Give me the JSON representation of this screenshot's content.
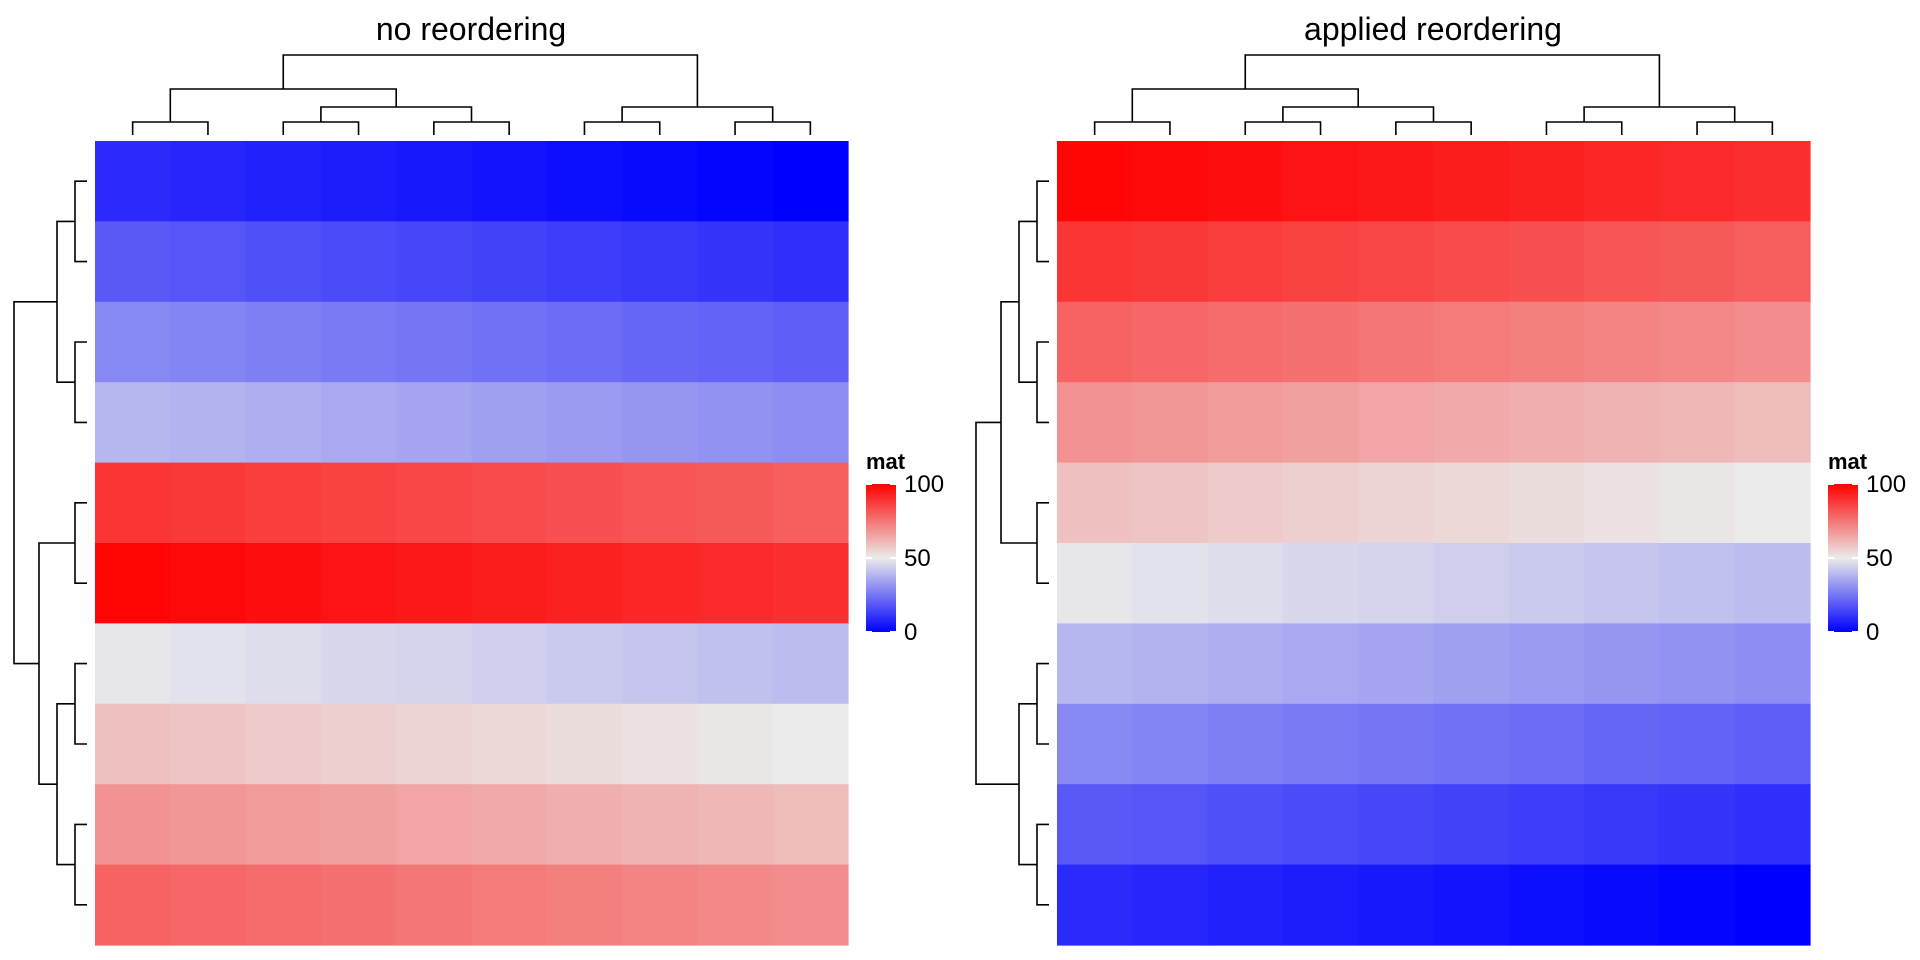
{
  "chart_data": [
    {
      "type": "heatmap",
      "title": "no reordering",
      "legend": {
        "title": "mat",
        "ticks": [
          0,
          50,
          100
        ],
        "range": [
          0,
          100
        ]
      },
      "values": [
        [
          9,
          8,
          7,
          6,
          5,
          4,
          3,
          2,
          1,
          0
        ],
        [
          19,
          18,
          17,
          16,
          15,
          14,
          13,
          12,
          11,
          10
        ],
        [
          29,
          28,
          27,
          26,
          25,
          24,
          23,
          22,
          21,
          20
        ],
        [
          39,
          38,
          37,
          36,
          35,
          34,
          33,
          32,
          31,
          30
        ],
        [
          89,
          88,
          87,
          86,
          85,
          84,
          83,
          82,
          81,
          80
        ],
        [
          99,
          98,
          97,
          96,
          95,
          94,
          93,
          92,
          91,
          90
        ],
        [
          49,
          48,
          47,
          46,
          45,
          44,
          43,
          42,
          41,
          40
        ],
        [
          59,
          58,
          57,
          56,
          55,
          54,
          53,
          52,
          51,
          50
        ],
        [
          69,
          68,
          67,
          66,
          65,
          64,
          63,
          62,
          61,
          60
        ],
        [
          79,
          78,
          77,
          76,
          75,
          74,
          73,
          72,
          71,
          70
        ]
      ]
    },
    {
      "type": "heatmap",
      "title": "applied reordering",
      "legend": {
        "title": "mat",
        "ticks": [
          0,
          50,
          100
        ],
        "range": [
          0,
          100
        ]
      },
      "values": [
        [
          99,
          98,
          97,
          96,
          95,
          94,
          93,
          92,
          91,
          90
        ],
        [
          89,
          88,
          87,
          86,
          85,
          84,
          83,
          82,
          81,
          80
        ],
        [
          79,
          78,
          77,
          76,
          75,
          74,
          73,
          72,
          71,
          70
        ],
        [
          69,
          68,
          67,
          66,
          65,
          64,
          63,
          62,
          61,
          60
        ],
        [
          59,
          58,
          57,
          56,
          55,
          54,
          53,
          52,
          51,
          50
        ],
        [
          49,
          48,
          47,
          46,
          45,
          44,
          43,
          42,
          41,
          40
        ],
        [
          39,
          38,
          37,
          36,
          35,
          34,
          33,
          32,
          31,
          30
        ],
        [
          29,
          28,
          27,
          26,
          25,
          24,
          23,
          22,
          21,
          20
        ],
        [
          19,
          18,
          17,
          16,
          15,
          14,
          13,
          12,
          11,
          10
        ],
        [
          9,
          8,
          7,
          6,
          5,
          4,
          3,
          2,
          1,
          0
        ]
      ]
    }
  ],
  "colors": {
    "low": "#0000FF",
    "mid": "#EBEBEB",
    "high": "#FF0000"
  }
}
